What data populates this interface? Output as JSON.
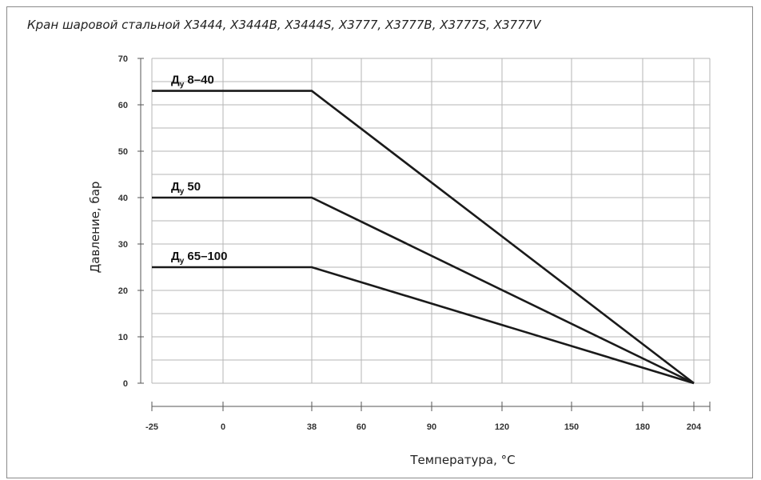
{
  "chart_data": {
    "type": "line",
    "title": "Кран шаровой стальной X3444, X3444B, X3444S, X3777, X3777B, X3777S, X3777V",
    "xlabel": "Температура, °C",
    "ylabel": "Давление, бар",
    "x_ticks": [
      "-25",
      "0",
      "38",
      "60",
      "90",
      "120",
      "150",
      "180",
      "204"
    ],
    "x_tick_values": [
      -25,
      0,
      38,
      60,
      90,
      120,
      150,
      180,
      204
    ],
    "y_ticks": [
      "0",
      "10",
      "20",
      "30",
      "40",
      "50",
      "60",
      "70"
    ],
    "y_tick_values": [
      0,
      10,
      20,
      30,
      40,
      50,
      60,
      70
    ],
    "ylim": [
      0,
      70
    ],
    "grid": true,
    "series": [
      {
        "label_main": "Д",
        "label_sub": "у",
        "label_rest": " 8–40",
        "points": [
          [
            -25,
            63
          ],
          [
            38,
            63
          ],
          [
            204,
            0
          ]
        ]
      },
      {
        "label_main": "Д",
        "label_sub": "у",
        "label_rest": " 50",
        "points": [
          [
            -25,
            40
          ],
          [
            38,
            40
          ],
          [
            204,
            0
          ]
        ]
      },
      {
        "label_main": "Д",
        "label_sub": "у",
        "label_rest": " 65–100",
        "points": [
          [
            -25,
            25
          ],
          [
            38,
            25
          ],
          [
            204,
            0
          ]
        ]
      }
    ]
  }
}
